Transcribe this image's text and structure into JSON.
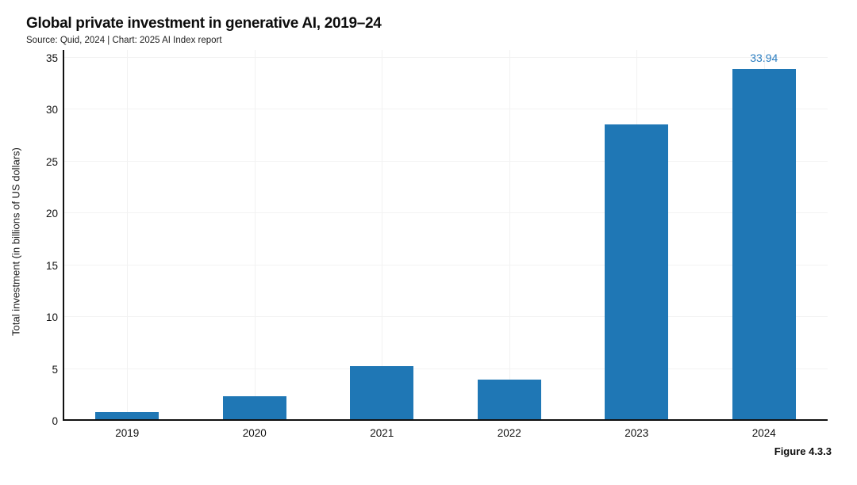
{
  "header": {
    "title": "Global private investment in generative AI, 2019–24",
    "subtitle": "Source: Quid, 2024 | Chart: 2025 AI Index report"
  },
  "figure_label": "Figure 4.3.3",
  "colors": {
    "bar": "#1f77b5",
    "value_label": "#2a7dc0",
    "axis": "#111111",
    "grid": "#f2f2f2",
    "text": "#111111"
  },
  "chart_data": {
    "type": "bar",
    "title": "Global private investment in generative AI, 2019–24",
    "categories": [
      "2019",
      "2020",
      "2021",
      "2022",
      "2023",
      "2024"
    ],
    "values": [
      0.85,
      2.35,
      5.3,
      3.95,
      28.6,
      33.94
    ],
    "value_labels": [
      "",
      "",
      "",
      "",
      "",
      "33.94"
    ],
    "xlabel": "",
    "ylabel": "Total investment (in billions of US dollars)",
    "ylim": [
      0,
      35
    ],
    "yticks": [
      0,
      5,
      10,
      15,
      20,
      25,
      30,
      35
    ],
    "grid": "faint horizontal gridlines at each y tick and faint vertical gridlines at each category center",
    "legend": "none"
  }
}
